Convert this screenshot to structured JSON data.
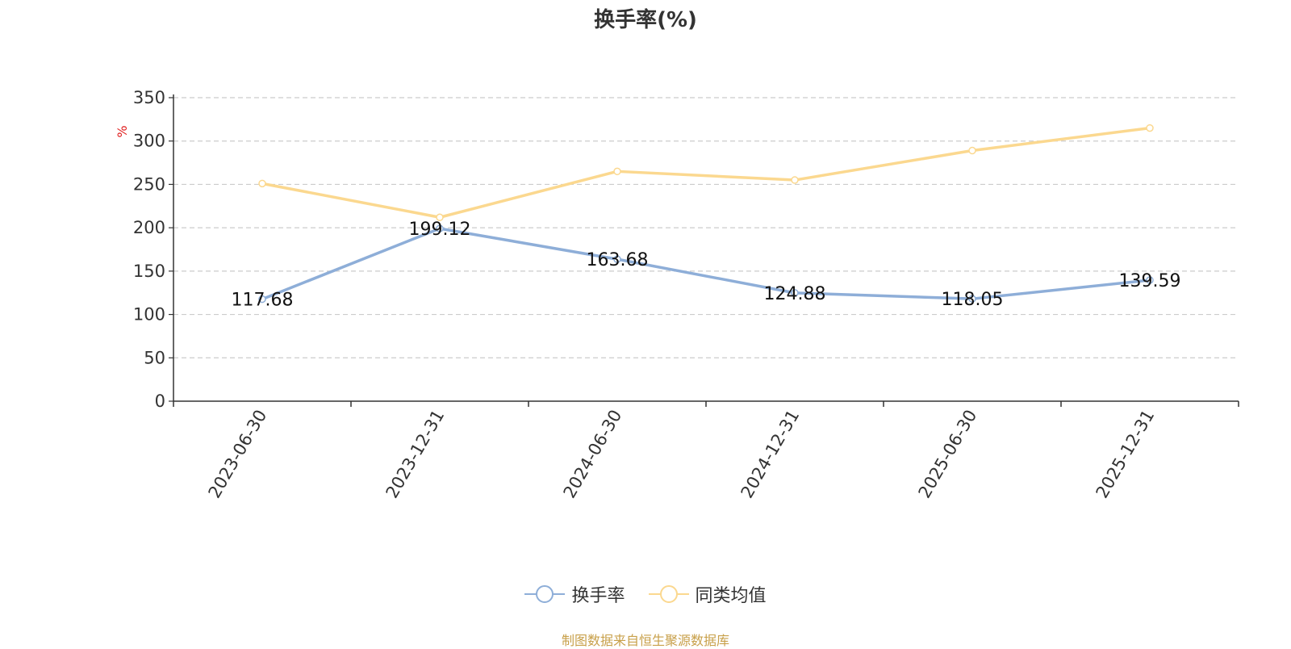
{
  "chart_data": {
    "type": "line",
    "title": "换手率(%)",
    "ylabel": "%",
    "xlabel": "",
    "categories": [
      "2023-06-30",
      "2023-12-31",
      "2024-06-30",
      "2024-12-31",
      "2025-06-30",
      "2025-12-31"
    ],
    "ylim": [
      0,
      350
    ],
    "yticks": [
      0,
      50,
      100,
      150,
      200,
      250,
      300,
      350
    ],
    "grid": true,
    "legend_position": "bottom",
    "series": [
      {
        "name": "换手率",
        "color": "#8eaed8",
        "values": [
          117.68,
          199.12,
          163.68,
          124.88,
          118.05,
          139.59
        ],
        "labels": [
          "117.68",
          "199.12",
          "163.68",
          "124.88",
          "118.05",
          "139.59"
        ]
      },
      {
        "name": "同类均值",
        "color": "#fbd88f",
        "values": [
          251,
          212,
          265,
          255,
          289,
          315
        ]
      }
    ]
  },
  "source_note": "制图数据来自恒生聚源数据库"
}
